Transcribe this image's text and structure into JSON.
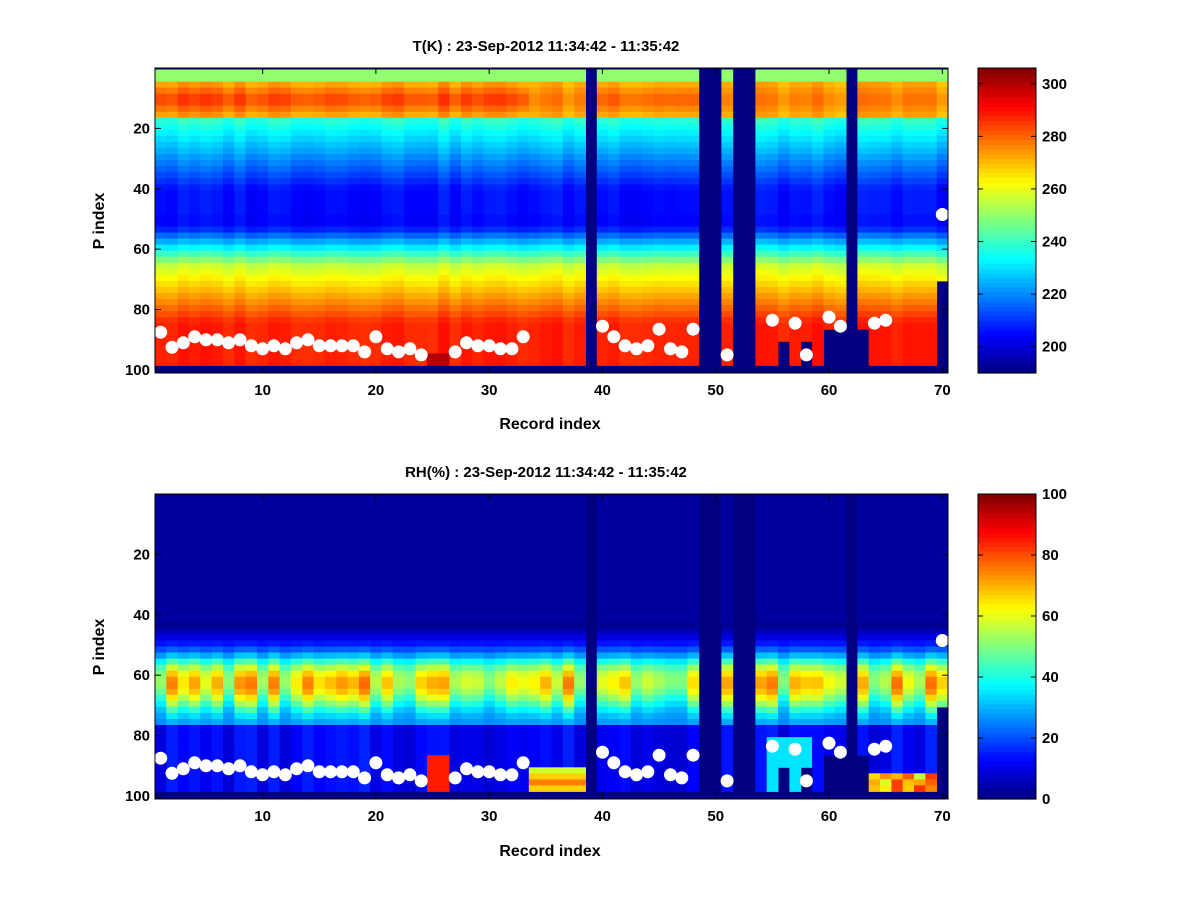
{
  "chart_data": [
    {
      "type": "heatmap",
      "title": "T(K) : 23-Sep-2012 11:34:42 - 11:35:42",
      "xlabel": "Record index",
      "ylabel": "P index",
      "xlim": [
        0.5,
        70.5
      ],
      "ylim": [
        101,
        0
      ],
      "xticks": [
        10,
        20,
        30,
        40,
        50,
        60,
        70
      ],
      "yticks": [
        20,
        40,
        60,
        80,
        100
      ],
      "colorbar": {
        "min": 190,
        "max": 306,
        "ticks": [
          200,
          220,
          240,
          260,
          280,
          300
        ]
      },
      "colormap": "jet",
      "missing_records": [
        39,
        49,
        50,
        52,
        53,
        62
      ],
      "bottom_level_by_record": [
        98,
        98,
        98,
        98,
        98,
        98,
        98,
        98,
        98,
        98,
        98,
        98,
        98,
        98,
        98,
        98,
        98,
        98,
        98,
        98,
        98,
        98,
        98,
        98,
        98,
        98,
        98,
        98,
        98,
        98,
        98,
        98,
        98,
        98,
        98,
        98,
        98,
        98,
        98,
        98,
        98,
        98,
        98,
        98,
        98,
        98,
        98,
        98,
        98,
        98,
        98,
        98,
        98,
        98,
        98,
        90,
        98,
        90,
        98,
        86,
        86,
        86,
        86,
        98,
        98,
        98,
        98,
        98,
        98,
        69
      ],
      "surface_markers": {
        "x": [
          1,
          2,
          3,
          4,
          5,
          6,
          7,
          8,
          9,
          10,
          11,
          12,
          13,
          14,
          15,
          16,
          17,
          18,
          19,
          20,
          21,
          22,
          23,
          24,
          27,
          28,
          29,
          30,
          31,
          32,
          33,
          40,
          41,
          42,
          43,
          44,
          45,
          46,
          47,
          48,
          51,
          55,
          57,
          58,
          60,
          61,
          64,
          65,
          70
        ],
        "y": [
          87.5,
          92.5,
          91,
          89,
          90,
          90,
          91,
          90,
          92,
          93,
          92,
          93,
          91,
          90,
          92,
          92,
          92,
          92,
          94,
          89,
          93,
          94,
          93,
          95,
          94,
          91,
          92,
          92,
          93,
          93,
          89,
          85.5,
          89,
          92,
          93,
          92,
          86.5,
          93,
          94,
          86.5,
          95,
          83.5,
          84.5,
          95,
          82.5,
          85.5,
          84.5,
          83.5,
          48.5
        ]
      }
    },
    {
      "type": "heatmap",
      "title": "RH(%) : 23-Sep-2012 11:34:42 - 11:35:42",
      "xlabel": "Record index",
      "ylabel": "P index",
      "xlim": [
        0.5,
        70.5
      ],
      "ylim": [
        101,
        0
      ],
      "xticks": [
        10,
        20,
        30,
        40,
        50,
        60,
        70
      ],
      "yticks": [
        20,
        40,
        60,
        80,
        100
      ],
      "colorbar": {
        "min": 0,
        "max": 100,
        "ticks": [
          0,
          20,
          40,
          60,
          80,
          100
        ]
      },
      "colormap": "jet",
      "missing_records": [
        39,
        49,
        50,
        52,
        53,
        62
      ],
      "bottom_level_by_record": [
        98,
        98,
        98,
        98,
        98,
        98,
        98,
        98,
        98,
        98,
        98,
        98,
        98,
        98,
        98,
        98,
        98,
        98,
        98,
        98,
        98,
        98,
        98,
        98,
        98,
        98,
        98,
        98,
        98,
        98,
        98,
        98,
        98,
        98,
        98,
        98,
        98,
        98,
        98,
        98,
        98,
        98,
        98,
        98,
        98,
        98,
        98,
        98,
        98,
        98,
        98,
        98,
        98,
        98,
        98,
        90,
        98,
        90,
        98,
        86,
        86,
        86,
        86,
        98,
        98,
        98,
        98,
        98,
        98,
        69
      ],
      "surface_markers": {
        "x": [
          1,
          2,
          3,
          4,
          5,
          6,
          7,
          8,
          9,
          10,
          11,
          12,
          13,
          14,
          15,
          16,
          17,
          18,
          19,
          20,
          21,
          22,
          23,
          24,
          27,
          28,
          29,
          30,
          31,
          32,
          33,
          40,
          41,
          42,
          43,
          44,
          45,
          46,
          47,
          48,
          51,
          55,
          57,
          58,
          60,
          61,
          64,
          65,
          70
        ],
        "y": [
          87.5,
          92.5,
          91,
          89,
          90,
          90,
          91,
          90,
          92,
          93,
          92,
          93,
          91,
          90,
          92,
          92,
          92,
          92,
          94,
          89,
          93,
          94,
          93,
          95,
          94,
          91,
          92,
          92,
          93,
          93,
          89,
          85.5,
          89,
          92,
          93,
          92,
          86.5,
          93,
          94,
          86.5,
          95,
          83.5,
          84.5,
          95,
          82.5,
          85.5,
          84.5,
          83.5,
          48.5
        ]
      }
    }
  ]
}
